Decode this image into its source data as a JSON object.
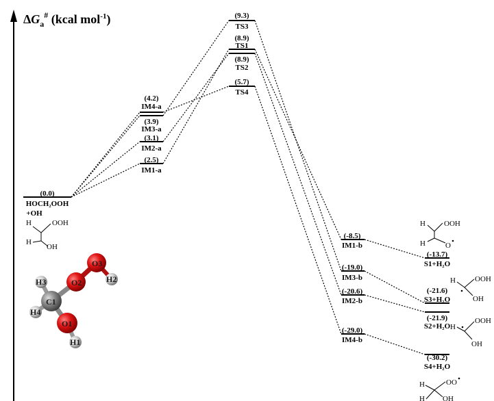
{
  "axis": {
    "title_delta": "Δ",
    "title_G": "G",
    "title_sub": "a",
    "title_sup": "#",
    "title_unit": " (kcal mol",
    "title_unit_sup": "-1",
    "title_close": ")"
  },
  "levels": {
    "start": {
      "value": "(0.0)",
      "name": "HOCH₂OOH",
      "name2": "+OH"
    },
    "im4a": {
      "value": "(4.2)",
      "name": "IM4-a"
    },
    "im3a": {
      "value": "(3.9)",
      "name": "IM3-a"
    },
    "im2a": {
      "value": "(3.1)",
      "name": "IM2-a"
    },
    "im1a": {
      "value": "(2.5)",
      "name": "IM1-a"
    },
    "ts3": {
      "value": "(9.3)",
      "name": "TS3"
    },
    "ts1": {
      "value": "(8.9)",
      "name": "TS1"
    },
    "ts2": {
      "value": "(8.9)",
      "name": "TS2"
    },
    "ts4": {
      "value": "(5.7)",
      "name": "TS4"
    },
    "im1b": {
      "value": "(-8.5)",
      "name": "IM1-b"
    },
    "im3b": {
      "value": "(-19.0)",
      "name": "IM3-b"
    },
    "im2b": {
      "value": "(-20.6)",
      "name": "IM2-b"
    },
    "im4b": {
      "value": "(-29.0)",
      "name": "IM4-b"
    },
    "s1": {
      "value": "(-13.7)",
      "name": "S1+H₂O"
    },
    "s3": {
      "value": "(-21.6)",
      "name": "S3+H₂O"
    },
    "s2": {
      "value": "(-21.9)",
      "name": "S2+H₂O"
    },
    "s4": {
      "value": "(-30.2)",
      "name": "S4+H₂O"
    }
  },
  "structures": {
    "reactant": {
      "h": "H",
      "ooh": "OOH",
      "oh": "OH"
    },
    "s1": {
      "h": "H",
      "ooh": "OOH",
      "o": "O"
    },
    "s3": {
      "h": "H",
      "ooh": "OOH",
      "oh": "OH"
    },
    "s2": {
      "h": "H",
      "ooh": "OOH",
      "oh": "OH"
    },
    "s4": {
      "h": "H",
      "oo": "OO",
      "oh": "OH"
    }
  },
  "atoms": {
    "h3": "H3",
    "o2": "O2",
    "o3": "O3",
    "h2": "H2",
    "c1": "C1",
    "h4": "H4",
    "o1": "O1",
    "h1": "H1"
  },
  "colors": {
    "oxygen": "#dd1111",
    "carbon": "#777777",
    "hydrogen": "#cccccc"
  }
}
